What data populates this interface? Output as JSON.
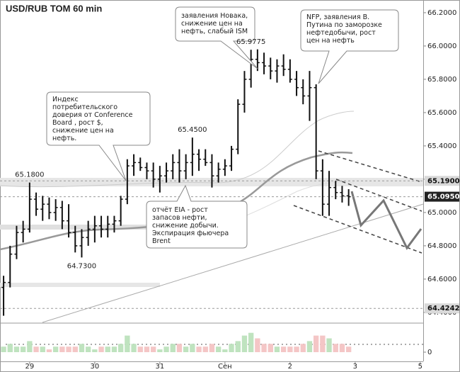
{
  "chart_data": {
    "type": "ohlc",
    "title": "USD/RUB TOM 60 min",
    "x": [
      -0.4,
      -0.3,
      -0.2,
      -0.1,
      0.0,
      0.1,
      0.2,
      0.3,
      0.4,
      0.5,
      0.6,
      0.7,
      0.8,
      0.9,
      1.0,
      1.1,
      1.2,
      1.3,
      1.4,
      1.5,
      1.6,
      1.7,
      1.8,
      1.9,
      2.0,
      2.1,
      2.2,
      2.3,
      2.4,
      2.5,
      2.6,
      2.7,
      2.8,
      2.9,
      3.0,
      3.1,
      3.2,
      3.3,
      3.4,
      3.5,
      3.6,
      3.7,
      3.8,
      3.9,
      4.0,
      4.1,
      4.2,
      4.3,
      4.4,
      4.5,
      4.6,
      4.7,
      4.8,
      4.9
    ],
    "open": [
      64.55,
      64.58,
      64.75,
      64.88,
      64.9,
      65.08,
      65.02,
      65.05,
      65.0,
      65.03,
      64.95,
      64.88,
      64.8,
      64.85,
      64.9,
      64.92,
      64.9,
      64.93,
      64.95,
      65.08,
      65.28,
      65.3,
      65.27,
      65.25,
      65.2,
      65.22,
      65.25,
      65.3,
      65.25,
      65.3,
      65.35,
      65.32,
      65.3,
      65.22,
      65.26,
      65.28,
      65.38,
      65.65,
      65.8,
      65.92,
      65.9,
      65.88,
      65.85,
      65.88,
      65.86,
      65.8,
      65.75,
      65.7,
      65.75,
      65.25,
      65.05,
      65.15,
      65.12,
      65.1
    ],
    "high": [
      64.62,
      64.8,
      64.92,
      64.95,
      65.18,
      65.12,
      65.1,
      65.09,
      65.08,
      65.07,
      65.05,
      64.92,
      64.9,
      64.95,
      64.98,
      64.98,
      64.98,
      64.98,
      65.1,
      65.32,
      65.35,
      65.33,
      65.3,
      65.3,
      65.28,
      65.3,
      65.35,
      65.38,
      65.35,
      65.45,
      65.38,
      65.38,
      65.35,
      65.3,
      65.32,
      65.4,
      65.68,
      65.85,
      65.9775,
      65.98,
      65.96,
      65.93,
      65.92,
      65.95,
      65.92,
      65.85,
      65.8,
      65.85,
      65.77,
      65.32,
      65.25,
      65.19,
      65.16,
      65.14
    ],
    "low": [
      64.38,
      64.55,
      64.72,
      64.82,
      64.88,
      64.98,
      64.95,
      64.96,
      64.95,
      64.9,
      64.85,
      64.76,
      64.73,
      64.8,
      64.82,
      64.85,
      64.85,
      64.88,
      64.92,
      65.05,
      65.22,
      65.25,
      65.2,
      65.15,
      65.12,
      65.18,
      65.2,
      65.18,
      65.2,
      65.22,
      65.25,
      65.28,
      65.15,
      65.18,
      65.22,
      65.25,
      65.35,
      65.6,
      65.75,
      65.85,
      65.83,
      65.8,
      65.78,
      65.82,
      65.78,
      65.7,
      65.65,
      65.55,
      65.2,
      64.98,
      64.98,
      65.08,
      65.06,
      65.04
    ],
    "close": [
      64.58,
      64.75,
      64.88,
      64.9,
      65.08,
      65.02,
      65.05,
      65.0,
      65.03,
      64.95,
      64.88,
      64.8,
      64.85,
      64.9,
      64.92,
      64.9,
      64.93,
      64.95,
      65.08,
      65.28,
      65.3,
      65.27,
      65.25,
      65.2,
      65.22,
      65.25,
      65.3,
      65.25,
      65.3,
      65.35,
      65.32,
      65.3,
      65.22,
      65.26,
      65.28,
      65.38,
      65.65,
      65.8,
      65.92,
      65.9,
      65.88,
      65.85,
      65.88,
      65.86,
      65.8,
      65.75,
      65.7,
      65.75,
      65.25,
      65.05,
      65.15,
      65.12,
      65.1,
      65.095
    ],
    "volume": [
      2,
      3,
      2,
      2,
      4,
      2,
      2,
      1,
      2,
      2,
      2,
      2,
      3,
      2,
      1,
      2,
      2,
      2,
      3,
      6,
      3,
      2,
      2,
      2,
      1,
      2,
      3,
      3,
      2,
      3,
      2,
      2,
      3,
      2,
      1,
      3,
      4,
      6,
      7,
      5,
      3,
      3,
      2,
      2,
      2,
      2,
      3,
      4,
      6,
      6,
      5,
      3,
      3,
      2
    ],
    "color": "#111111",
    "up_color": "#bfe3bf",
    "down_color": "#f4c6c6",
    "xlim": [
      -0.455,
      6.045
    ],
    "xticks": [
      {
        "value": 0,
        "label": "29"
      },
      {
        "value": 1,
        "label": "30"
      },
      {
        "value": 2,
        "label": "31"
      },
      {
        "value": 3,
        "label": "Сен"
      },
      {
        "value": 4,
        "label": "2"
      },
      {
        "value": 5,
        "label": "3"
      },
      {
        "value": 6,
        "label": "5"
      }
    ],
    "ylim": [
      64.34,
      66.255
    ],
    "yticks": [
      {
        "value": 64.4,
        "label": "64.4000"
      },
      {
        "value": 64.6,
        "label": "64.6000"
      },
      {
        "value": 64.8,
        "label": "64.8000"
      },
      {
        "value": 65.0,
        "label": "65.0000"
      },
      {
        "value": 65.2,
        "label": "65.2000"
      },
      {
        "value": 65.4,
        "label": "65.4000"
      },
      {
        "value": 65.6,
        "label": "65.6000"
      },
      {
        "value": 65.8,
        "label": "65.8000"
      },
      {
        "value": 66.0,
        "label": "66.0000"
      },
      {
        "value": 66.2,
        "label": "66.2000"
      }
    ],
    "vlim": [
      0,
      10
    ],
    "vticks": [
      0
    ],
    "price_markers": [
      {
        "value": 65.19,
        "label": "65.1900",
        "background": "#d9d9d9",
        "text_color": "#111111"
      },
      {
        "value": 65.095,
        "label": "65.0950",
        "background": "#222222",
        "text_color": "#ffffff"
      },
      {
        "value": 64.4242,
        "label": "64.4242",
        "background": "#d9d9d9",
        "text_color": "#111111"
      }
    ],
    "point_labels": [
      {
        "x": 0.0,
        "value": 65.18,
        "label": "65.1800"
      },
      {
        "x": 0.8,
        "value": 64.73,
        "label": "64.7300"
      },
      {
        "x": 2.5,
        "value": 65.45,
        "label": "65.4500"
      },
      {
        "x": 3.4,
        "value": 65.9775,
        "label": "65.9775"
      }
    ],
    "annotations": [
      {
        "lines": [
          "заявления Новака,",
          "снижение цен на",
          "нефть, слабый ISM"
        ]
      },
      {
        "lines": [
          "NFP, заявления В.",
          "Путина по заморозке",
          "нефтедобычи, рост",
          "цен на нефть"
        ]
      },
      {
        "lines": [
          "Индекс",
          "потребительского",
          "доверия от Conference",
          "Board , рост $,",
          "снижение цен на",
          "нефть."
        ]
      },
      {
        "lines": [
          "отчёт EIA - рост",
          "запасов нефти,",
          "снижение добычи.",
          "Экспирация фьючера",
          "Brent"
        ]
      }
    ]
  }
}
